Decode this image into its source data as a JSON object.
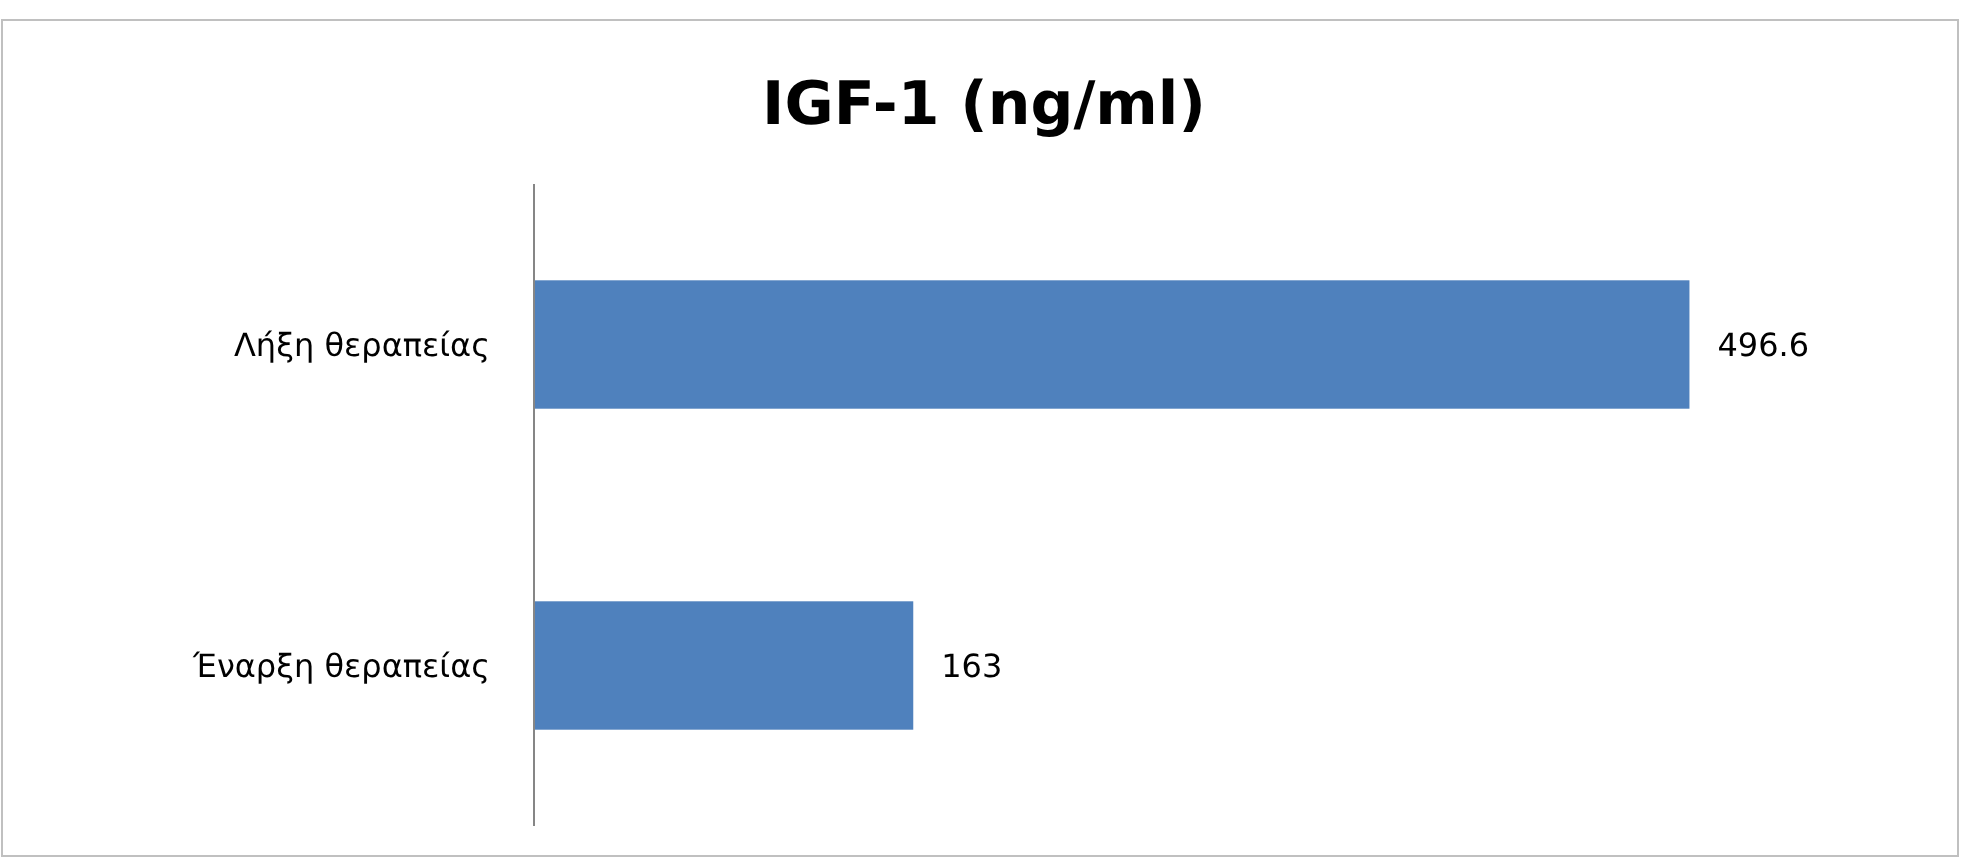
{
  "chart_data": {
    "type": "bar",
    "title": "IGF-1 (ng/ml)",
    "orientation": "horizontal",
    "categories": [
      "Λήξη θεραπείας",
      "Έναρξη θεραπείας"
    ],
    "values": [
      496.6,
      163
    ],
    "color": "#4f81bd",
    "data_labels": true
  }
}
